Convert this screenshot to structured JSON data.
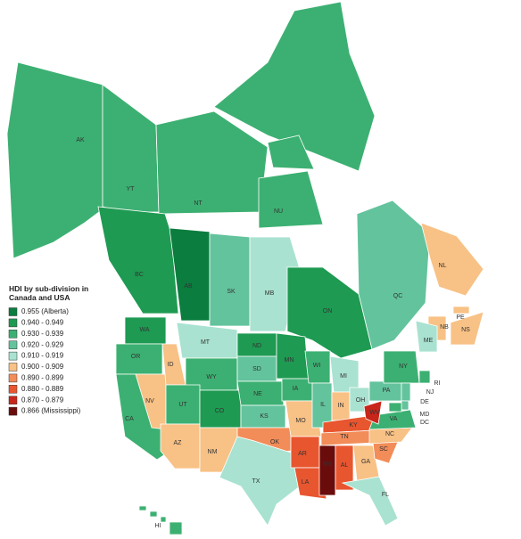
{
  "map": {
    "title": "HDI by sub-division in Canada and USA",
    "legend": [
      {
        "name": "0.955 (Alberta)",
        "color": "#0b7d3e"
      },
      {
        "name": "0.940 - 0.949",
        "color": "#1e9a52"
      },
      {
        "name": "0.930 - 0.939",
        "color": "#3cb072"
      },
      {
        "name": "0.920 - 0.929",
        "color": "#63c39d"
      },
      {
        "name": "0.910 - 0.919",
        "color": "#a9e2d0"
      },
      {
        "name": "0.900 - 0.909",
        "color": "#f8c185"
      },
      {
        "name": "0.890 - 0.899",
        "color": "#f28c58"
      },
      {
        "name": "0.880 - 0.889",
        "color": "#e8562f"
      },
      {
        "name": "0.870 - 0.879",
        "color": "#c8261a"
      },
      {
        "name": "0.866 (Mississippi)",
        "color": "#6a0c0c"
      }
    ],
    "regions": [
      {
        "label": "AK",
        "class": 2
      },
      {
        "label": "YT",
        "class": 2
      },
      {
        "label": "NT",
        "class": 2
      },
      {
        "label": "NU",
        "class": 2
      },
      {
        "label": "BC",
        "class": 1
      },
      {
        "label": "AB",
        "class": 0
      },
      {
        "label": "SK",
        "class": 3
      },
      {
        "label": "MB",
        "class": 4
      },
      {
        "label": "ON",
        "class": 1
      },
      {
        "label": "QC",
        "class": 3
      },
      {
        "label": "NL",
        "class": 5
      },
      {
        "label": "NB",
        "class": 5
      },
      {
        "label": "NS",
        "class": 5
      },
      {
        "label": "PE",
        "class": 5
      },
      {
        "label": "WA",
        "class": 1
      },
      {
        "label": "OR",
        "class": 2
      },
      {
        "label": "CA",
        "class": 2
      },
      {
        "label": "NV",
        "class": 5
      },
      {
        "label": "ID",
        "class": 5
      },
      {
        "label": "MT",
        "class": 4
      },
      {
        "label": "WY",
        "class": 2
      },
      {
        "label": "UT",
        "class": 2
      },
      {
        "label": "CO",
        "class": 1
      },
      {
        "label": "AZ",
        "class": 5
      },
      {
        "label": "NM",
        "class": 5
      },
      {
        "label": "ND",
        "class": 1
      },
      {
        "label": "SD",
        "class": 3
      },
      {
        "label": "NE",
        "class": 2
      },
      {
        "label": "KS",
        "class": 3
      },
      {
        "label": "OK",
        "class": 6
      },
      {
        "label": "TX",
        "class": 4
      },
      {
        "label": "MN",
        "class": 1
      },
      {
        "label": "IA",
        "class": 2
      },
      {
        "label": "MO",
        "class": 5
      },
      {
        "label": "AR",
        "class": 7
      },
      {
        "label": "LA",
        "class": 7
      },
      {
        "label": "WI",
        "class": 2
      },
      {
        "label": "IL",
        "class": 3
      },
      {
        "label": "MI",
        "class": 4
      },
      {
        "label": "IN",
        "class": 5
      },
      {
        "label": "OH",
        "class": 4
      },
      {
        "label": "KY",
        "class": 7
      },
      {
        "label": "TN",
        "class": 6
      },
      {
        "label": "MS",
        "class": 9
      },
      {
        "label": "AL",
        "class": 7
      },
      {
        "label": "GA",
        "class": 5
      },
      {
        "label": "FL",
        "class": 4
      },
      {
        "label": "SC",
        "class": 6
      },
      {
        "label": "NC",
        "class": 5
      },
      {
        "label": "VA",
        "class": 2
      },
      {
        "label": "WV",
        "class": 8
      },
      {
        "label": "PA",
        "class": 3
      },
      {
        "label": "NY",
        "class": 2
      },
      {
        "label": "ME",
        "class": 4
      },
      {
        "label": "RI",
        "class": 2
      },
      {
        "label": "NJ",
        "class": 3
      },
      {
        "label": "DE",
        "class": 3
      },
      {
        "label": "MD",
        "class": 2
      },
      {
        "label": "DC",
        "class": 1
      },
      {
        "label": "HI",
        "class": 2
      }
    ]
  }
}
